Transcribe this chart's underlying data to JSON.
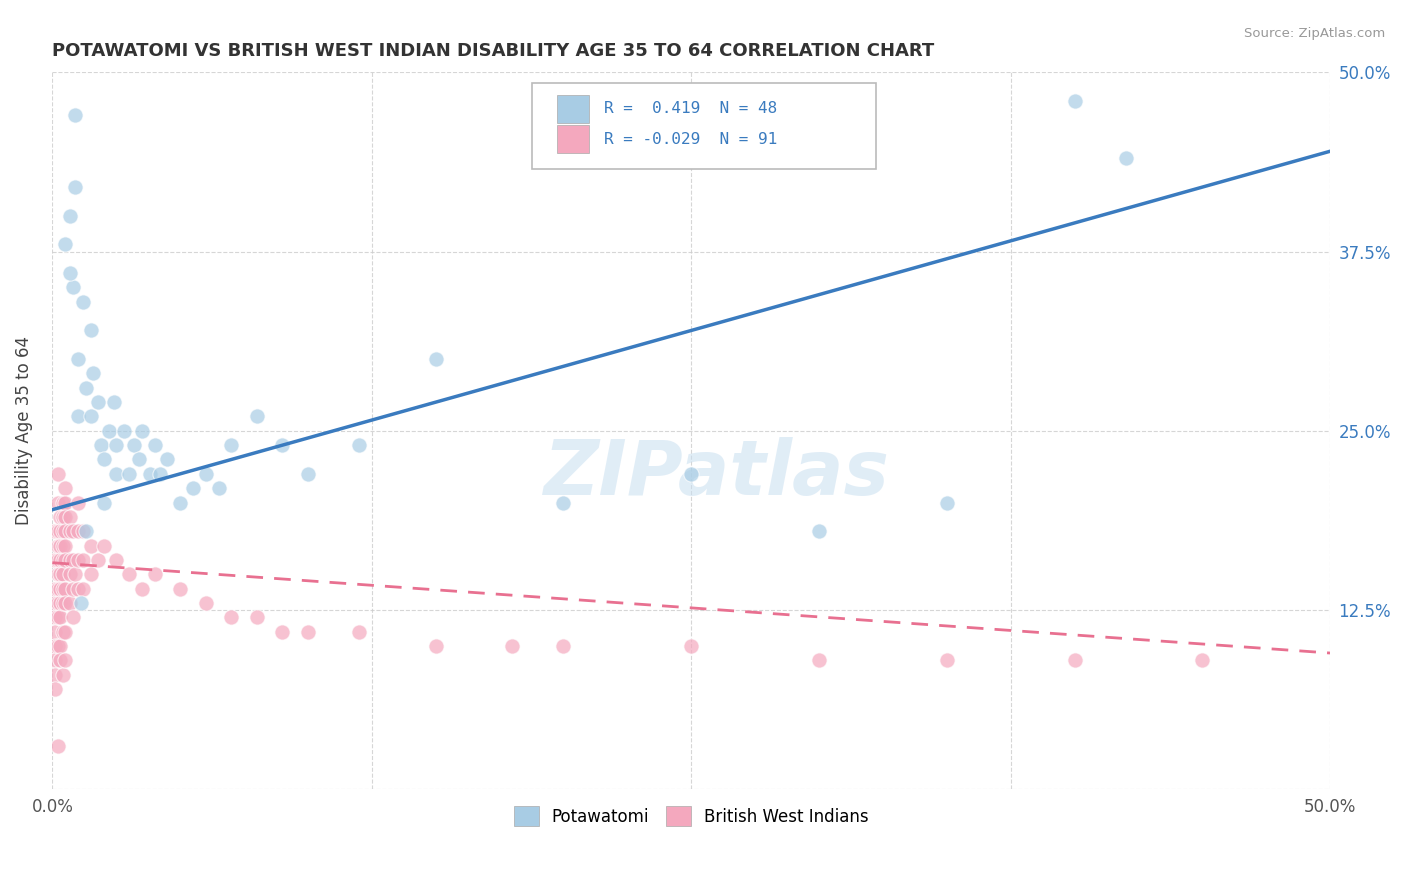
{
  "title": "POTAWATOMI VS BRITISH WEST INDIAN DISABILITY AGE 35 TO 64 CORRELATION CHART",
  "source": "Source: ZipAtlas.com",
  "ylabel": "Disability Age 35 to 64",
  "xlim": [
    0,
    0.5
  ],
  "ylim": [
    0,
    0.5
  ],
  "xticks": [
    0.0,
    0.125,
    0.25,
    0.375,
    0.5
  ],
  "yticks": [
    0.0,
    0.125,
    0.25,
    0.375,
    0.5
  ],
  "blue_R": 0.419,
  "blue_N": 48,
  "pink_R": -0.029,
  "pink_N": 91,
  "blue_color": "#a8cce4",
  "pink_color": "#f4a8be",
  "blue_line_color": "#3a7bbf",
  "pink_line_color": "#e87090",
  "watermark": "ZIPatlas",
  "background_color": "#ffffff",
  "grid_color": "#cccccc",
  "blue_scatter_x": [
    0.005,
    0.007,
    0.008,
    0.009,
    0.01,
    0.01,
    0.012,
    0.013,
    0.015,
    0.015,
    0.016,
    0.018,
    0.019,
    0.02,
    0.02,
    0.022,
    0.024,
    0.025,
    0.025,
    0.028,
    0.03,
    0.032,
    0.034,
    0.035,
    0.038,
    0.04,
    0.042,
    0.045,
    0.05,
    0.055,
    0.06,
    0.065,
    0.07,
    0.08,
    0.09,
    0.1,
    0.12,
    0.15,
    0.2,
    0.25,
    0.3,
    0.35,
    0.4,
    0.42,
    0.007,
    0.009,
    0.011,
    0.013
  ],
  "blue_scatter_y": [
    0.38,
    0.4,
    0.35,
    0.42,
    0.3,
    0.26,
    0.34,
    0.28,
    0.32,
    0.26,
    0.29,
    0.27,
    0.24,
    0.23,
    0.2,
    0.25,
    0.27,
    0.24,
    0.22,
    0.25,
    0.22,
    0.24,
    0.23,
    0.25,
    0.22,
    0.24,
    0.22,
    0.23,
    0.2,
    0.21,
    0.22,
    0.21,
    0.24,
    0.26,
    0.24,
    0.22,
    0.24,
    0.3,
    0.2,
    0.22,
    0.18,
    0.2,
    0.48,
    0.44,
    0.36,
    0.47,
    0.13,
    0.18
  ],
  "pink_scatter_x": [
    0.001,
    0.001,
    0.001,
    0.001,
    0.001,
    0.001,
    0.001,
    0.001,
    0.001,
    0.001,
    0.002,
    0.002,
    0.002,
    0.002,
    0.002,
    0.002,
    0.002,
    0.002,
    0.002,
    0.002,
    0.003,
    0.003,
    0.003,
    0.003,
    0.003,
    0.003,
    0.003,
    0.003,
    0.003,
    0.003,
    0.004,
    0.004,
    0.004,
    0.004,
    0.004,
    0.004,
    0.004,
    0.004,
    0.004,
    0.004,
    0.005,
    0.005,
    0.005,
    0.005,
    0.005,
    0.005,
    0.005,
    0.005,
    0.005,
    0.005,
    0.007,
    0.007,
    0.007,
    0.007,
    0.007,
    0.008,
    0.008,
    0.008,
    0.008,
    0.009,
    0.01,
    0.01,
    0.01,
    0.01,
    0.012,
    0.012,
    0.012,
    0.015,
    0.015,
    0.018,
    0.02,
    0.025,
    0.03,
    0.035,
    0.04,
    0.05,
    0.06,
    0.07,
    0.08,
    0.09,
    0.1,
    0.12,
    0.15,
    0.18,
    0.2,
    0.25,
    0.3,
    0.35,
    0.4,
    0.45,
    0.002
  ],
  "pink_scatter_y": [
    0.18,
    0.16,
    0.14,
    0.13,
    0.12,
    0.11,
    0.1,
    0.09,
    0.08,
    0.07,
    0.22,
    0.2,
    0.18,
    0.17,
    0.16,
    0.15,
    0.14,
    0.13,
    0.12,
    0.1,
    0.19,
    0.18,
    0.17,
    0.16,
    0.15,
    0.14,
    0.13,
    0.12,
    0.1,
    0.09,
    0.2,
    0.19,
    0.18,
    0.17,
    0.16,
    0.15,
    0.14,
    0.13,
    0.11,
    0.08,
    0.21,
    0.2,
    0.19,
    0.18,
    0.17,
    0.16,
    0.14,
    0.13,
    0.11,
    0.09,
    0.19,
    0.18,
    0.16,
    0.15,
    0.13,
    0.18,
    0.16,
    0.14,
    0.12,
    0.15,
    0.2,
    0.18,
    0.16,
    0.14,
    0.18,
    0.16,
    0.14,
    0.17,
    0.15,
    0.16,
    0.17,
    0.16,
    0.15,
    0.14,
    0.15,
    0.14,
    0.13,
    0.12,
    0.12,
    0.11,
    0.11,
    0.11,
    0.1,
    0.1,
    0.1,
    0.1,
    0.09,
    0.09,
    0.09,
    0.09,
    0.03
  ],
  "blue_line_x0": 0.0,
  "blue_line_y0": 0.195,
  "blue_line_x1": 0.5,
  "blue_line_y1": 0.445,
  "pink_line_x0": 0.0,
  "pink_line_y0": 0.158,
  "pink_line_x1": 0.5,
  "pink_line_y1": 0.095
}
